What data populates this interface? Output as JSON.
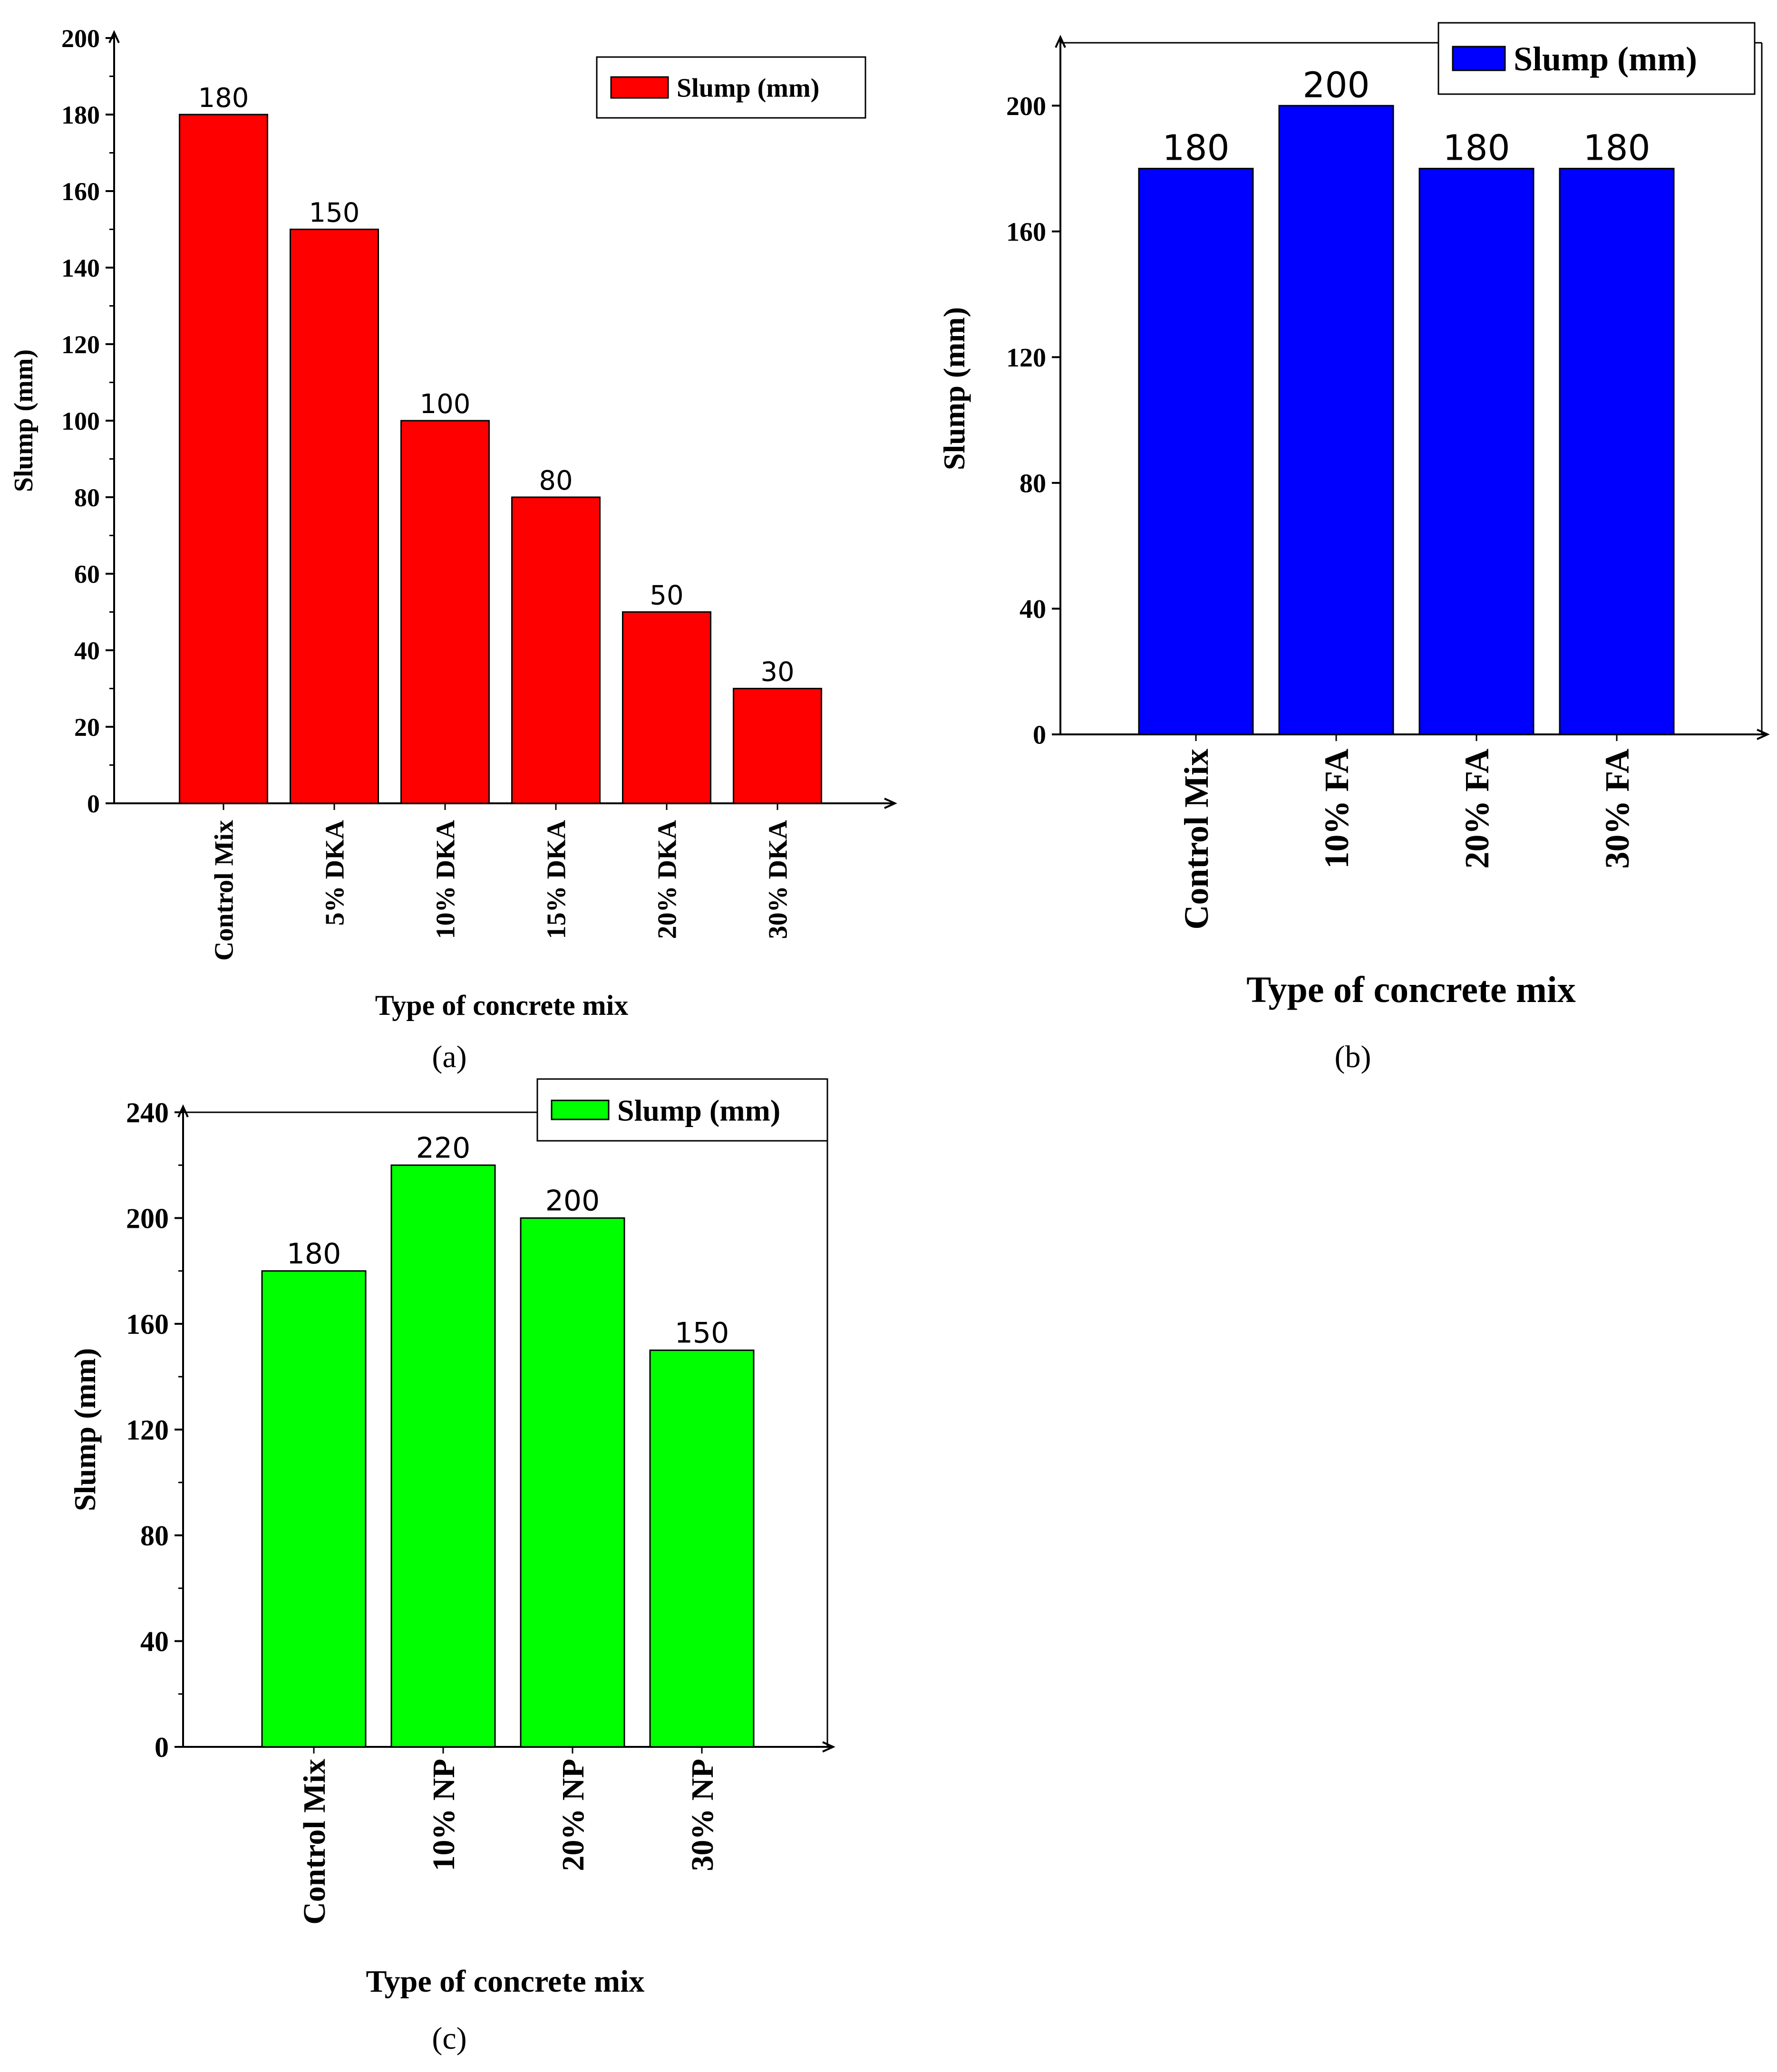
{
  "chart_data": [
    {
      "panel": "a",
      "panel_label": "(a)",
      "type": "bar",
      "categories": [
        "Control Mix",
        "5% DKA",
        "10% DKA",
        "15% DKA",
        "20% DKA",
        "30% DKA"
      ],
      "values": [
        180,
        150,
        100,
        80,
        50,
        30
      ],
      "data_labels": [
        "180",
        "150",
        "100",
        "80",
        "50",
        "30"
      ],
      "ylabel": "Slump (mm)",
      "xlabel": "Type of concrete mix",
      "ylim": [
        0,
        200
      ],
      "yticks": [
        0,
        20,
        40,
        60,
        80,
        100,
        120,
        140,
        160,
        180,
        200
      ],
      "legend": {
        "label": "Slump (mm)",
        "position": "top-right"
      },
      "color": "#ff0000"
    },
    {
      "panel": "b",
      "panel_label": "(b)",
      "type": "bar",
      "categories": [
        "Control Mix",
        "10% FA",
        "20% FA",
        "30% FA"
      ],
      "values": [
        180,
        200,
        180,
        180
      ],
      "data_labels": [
        "180",
        "200",
        "180",
        "180"
      ],
      "ylabel": "Slump (mm)",
      "xlabel": "Type of concrete mix",
      "ylim": [
        0,
        220
      ],
      "yticks": [
        0,
        40,
        80,
        120,
        160,
        200
      ],
      "legend": {
        "label": "Slump (mm)",
        "position": "top-right"
      },
      "color": "#0000ff"
    },
    {
      "panel": "c",
      "panel_label": "(c)",
      "type": "bar",
      "categories": [
        "Control Mix",
        "10% NP",
        "20% NP",
        "30% NP"
      ],
      "values": [
        180,
        220,
        200,
        150
      ],
      "data_labels": [
        "180",
        "220",
        "200",
        "150"
      ],
      "ylabel": "Slump (mm)",
      "xlabel": "Type of concrete mix",
      "ylim": [
        0,
        240
      ],
      "yticks": [
        0,
        40,
        80,
        120,
        160,
        200,
        240
      ],
      "legend": {
        "label": "Slump (mm)",
        "position": "top-right"
      },
      "color": "#00ff00"
    }
  ]
}
